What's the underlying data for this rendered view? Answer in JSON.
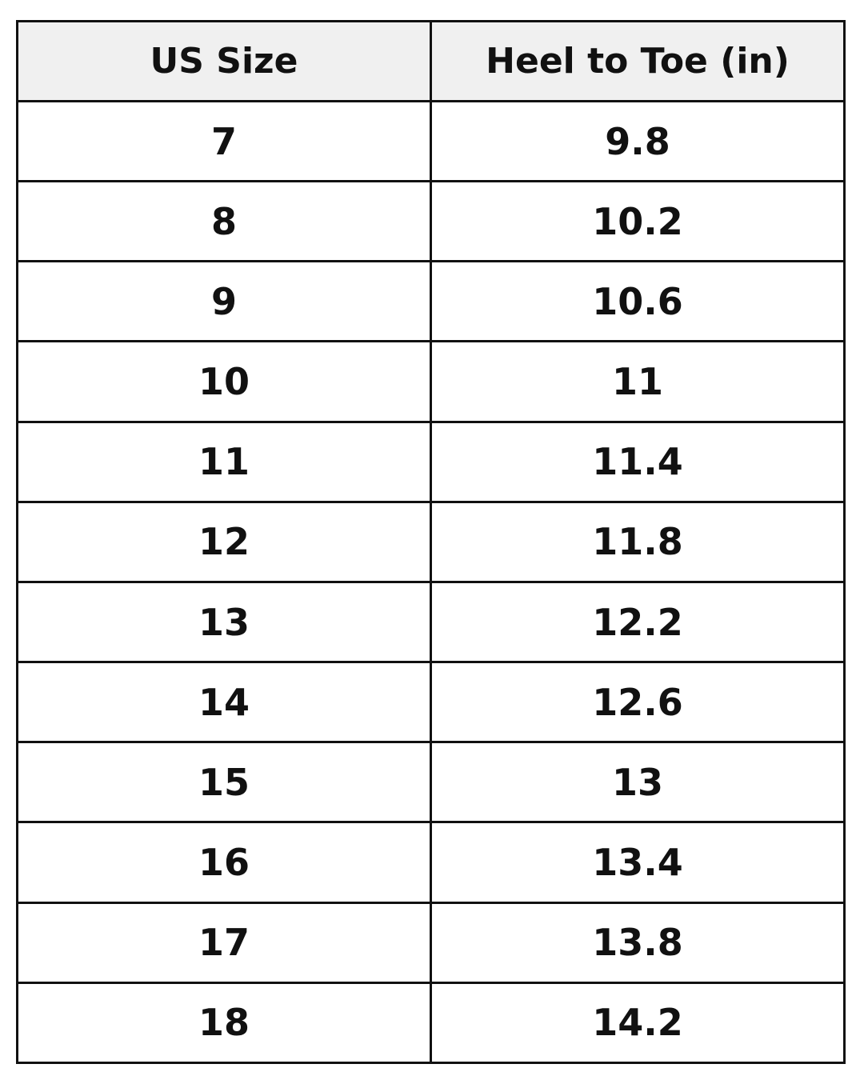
{
  "table": {
    "headers": [
      "US Size",
      "Heel to Toe (in)"
    ],
    "rows": [
      [
        "7",
        "9.8"
      ],
      [
        "8",
        "10.2"
      ],
      [
        "9",
        "10.6"
      ],
      [
        "10",
        "11"
      ],
      [
        "11",
        "11.4"
      ],
      [
        "12",
        "11.8"
      ],
      [
        "13",
        "12.2"
      ],
      [
        "14",
        "12.6"
      ],
      [
        "15",
        "13"
      ],
      [
        "16",
        "13.4"
      ],
      [
        "17",
        "13.8"
      ],
      [
        "18",
        "14.2"
      ]
    ],
    "header_background": "#f0f0f0"
  }
}
